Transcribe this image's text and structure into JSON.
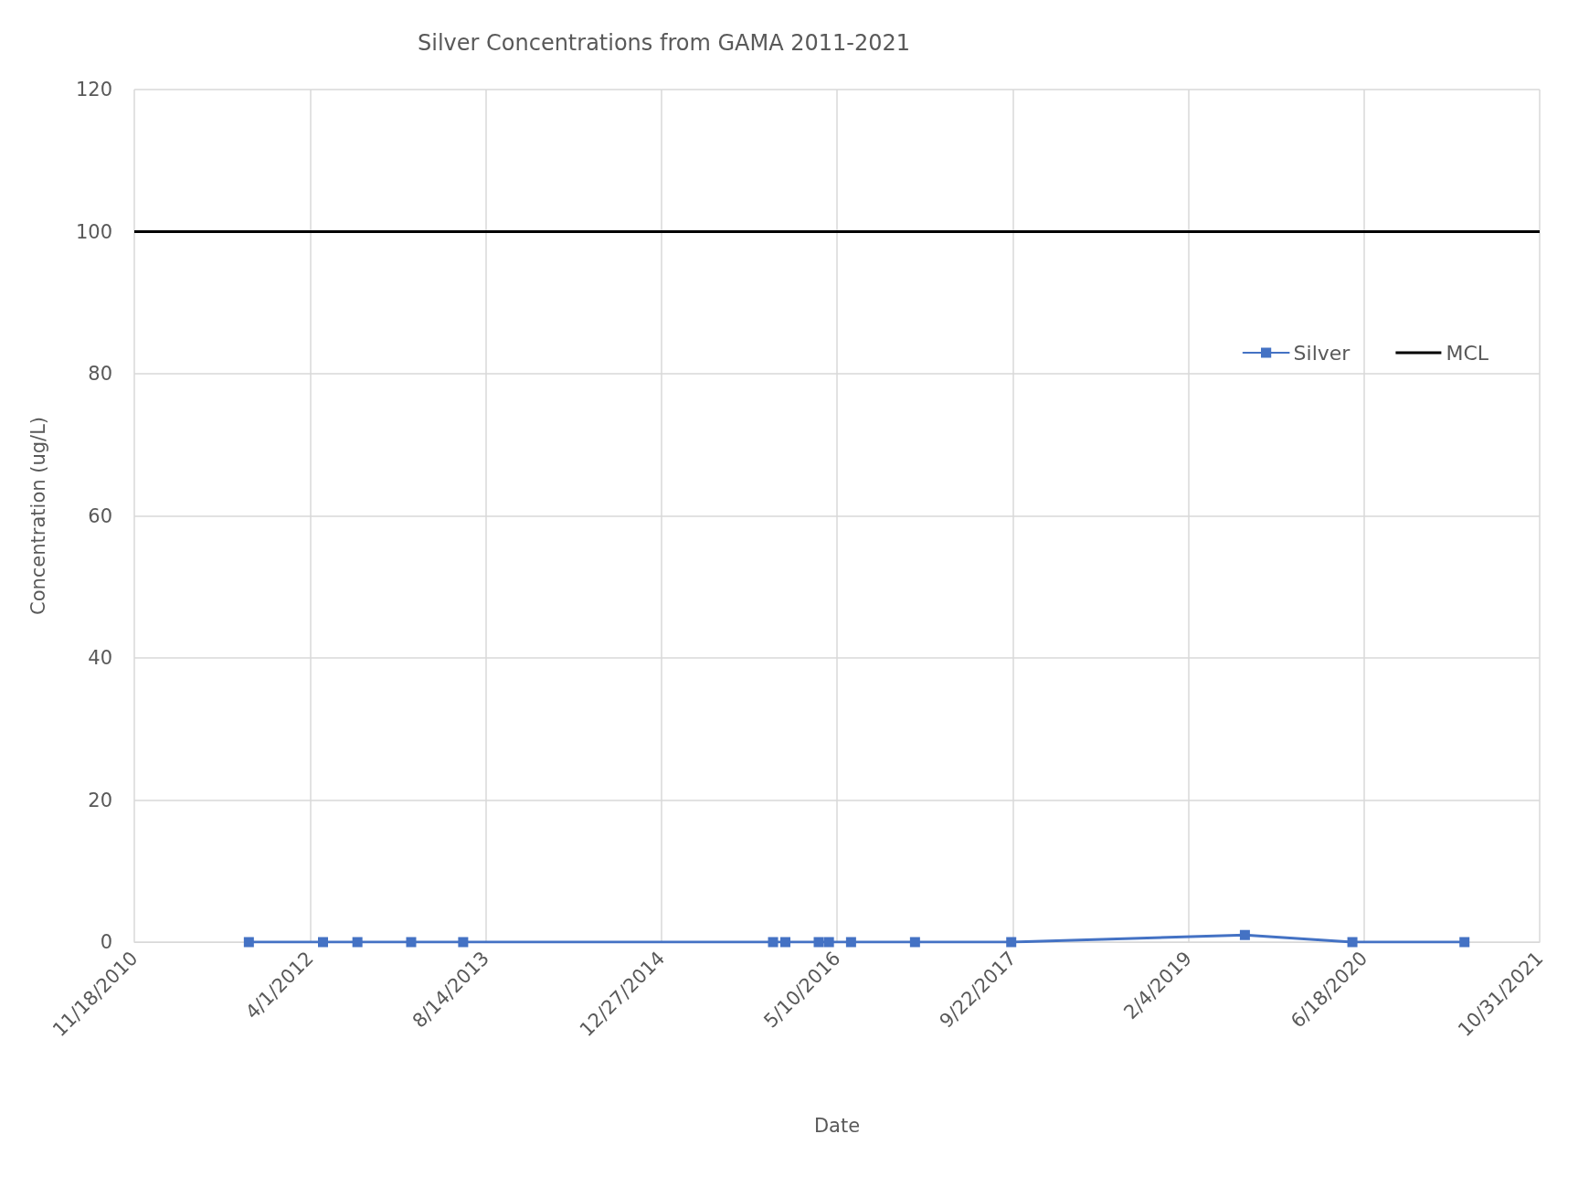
{
  "chart_data": {
    "type": "line",
    "title": "Silver Concentrations from GAMA 2011-2021",
    "xlabel": "Date",
    "ylabel": "Concentration (ug/L)",
    "series": [
      {
        "name": "Silver",
        "color": "#4472c4",
        "x": [
          "2011-10-10",
          "2012-05-08",
          "2012-08-14",
          "2013-01-14",
          "2013-06-11",
          "2015-11-10",
          "2015-12-15",
          "2016-03-19",
          "2016-04-17",
          "2016-06-19",
          "2016-12-18",
          "2017-09-18",
          "2019-07-15",
          "2020-05-16",
          "2021-03-31"
        ],
        "values": [
          0,
          0,
          0,
          0,
          0,
          0,
          0,
          0,
          0,
          0,
          0,
          0,
          1,
          0,
          0
        ]
      }
    ],
    "ref_lines": [
      {
        "axis": "y",
        "value": 100,
        "label": "MCL",
        "color": "#000000",
        "line_style": "solid"
      }
    ],
    "xlim": [
      "2010-11-18",
      "2021-10-31"
    ],
    "xticks": [
      {
        "value": "2010-11-18",
        "label": "11/18/2010"
      },
      {
        "value": "2012-04-01",
        "label": "4/1/2012"
      },
      {
        "value": "2013-08-14",
        "label": "8/14/2013"
      },
      {
        "value": "2014-12-27",
        "label": "12/27/2014"
      },
      {
        "value": "2016-05-10",
        "label": "5/10/2016"
      },
      {
        "value": "2017-09-22",
        "label": "9/22/2017"
      },
      {
        "value": "2019-02-04",
        "label": "2/4/2019"
      },
      {
        "value": "2020-06-18",
        "label": "6/18/2020"
      },
      {
        "value": "2021-10-31",
        "label": "10/31/2021"
      }
    ],
    "ylim": [
      0,
      120
    ],
    "yticks": [
      0,
      20,
      40,
      60,
      80,
      100,
      120
    ],
    "grid": true,
    "legend": "top right",
    "marker": "square",
    "line_style": "solid"
  }
}
